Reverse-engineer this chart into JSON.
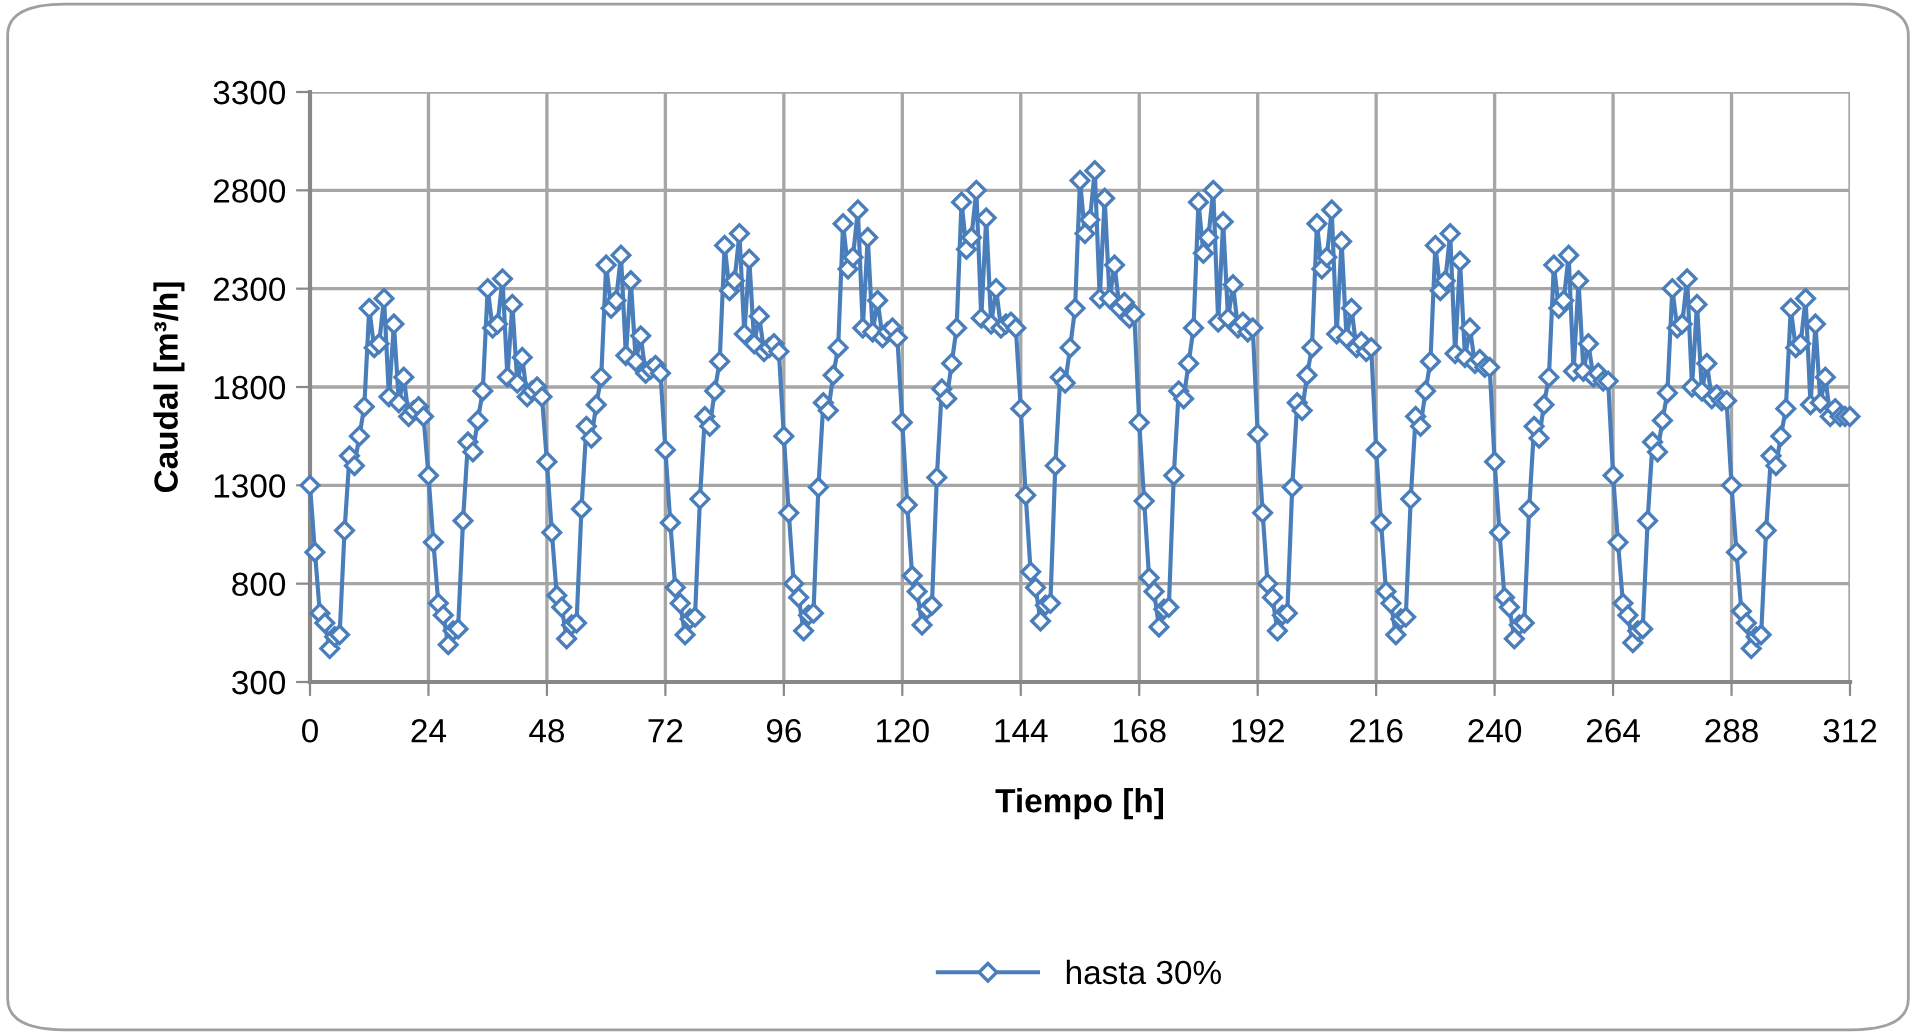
{
  "chart_data": {
    "type": "line",
    "xlabel": "Tiempo [h]",
    "ylabel": "Caudal [m³/h]",
    "xlim": [
      0,
      312
    ],
    "xticks": [
      0,
      24,
      48,
      72,
      96,
      120,
      144,
      168,
      192,
      216,
      240,
      264,
      288,
      312
    ],
    "ylim": [
      300,
      3300
    ],
    "yticks": [
      300,
      800,
      1300,
      1800,
      2300,
      2800,
      3300
    ],
    "grid": true,
    "legend": "bottom",
    "marker": "diamond",
    "line_style": "solid",
    "x": [
      0,
      1,
      2,
      3,
      4,
      5,
      6,
      7,
      8,
      9,
      10,
      11,
      12,
      13,
      14,
      15,
      16,
      17,
      18,
      19,
      20,
      21,
      22,
      23,
      24,
      25,
      26,
      27,
      28,
      29,
      30,
      31,
      32,
      33,
      34,
      35,
      36,
      37,
      38,
      39,
      40,
      41,
      42,
      43,
      44,
      45,
      46,
      47,
      48,
      49,
      50,
      51,
      52,
      53,
      54,
      55,
      56,
      57,
      58,
      59,
      60,
      61,
      62,
      63,
      64,
      65,
      66,
      67,
      68,
      69,
      70,
      71,
      72,
      73,
      74,
      75,
      76,
      77,
      78,
      79,
      80,
      81,
      82,
      83,
      84,
      85,
      86,
      87,
      88,
      89,
      90,
      91,
      92,
      93,
      94,
      95,
      96,
      97,
      98,
      99,
      100,
      101,
      102,
      103,
      104,
      105,
      106,
      107,
      108,
      109,
      110,
      111,
      112,
      113,
      114,
      115,
      116,
      117,
      118,
      119,
      120,
      121,
      122,
      123,
      124,
      125,
      126,
      127,
      128,
      129,
      130,
      131,
      132,
      133,
      134,
      135,
      136,
      137,
      138,
      139,
      140,
      141,
      142,
      143,
      144,
      145,
      146,
      147,
      148,
      149,
      150,
      151,
      152,
      153,
      154,
      155,
      156,
      157,
      158,
      159,
      160,
      161,
      162,
      163,
      164,
      165,
      166,
      167,
      168,
      169,
      170,
      171,
      172,
      173,
      174,
      175,
      176,
      177,
      178,
      179,
      180,
      181,
      182,
      183,
      184,
      185,
      186,
      187,
      188,
      189,
      190,
      191,
      192,
      193,
      194,
      195,
      196,
      197,
      198,
      199,
      200,
      201,
      202,
      203,
      204,
      205,
      206,
      207,
      208,
      209,
      210,
      211,
      212,
      213,
      214,
      215,
      216,
      217,
      218,
      219,
      220,
      221,
      222,
      223,
      224,
      225,
      226,
      227,
      228,
      229,
      230,
      231,
      232,
      233,
      234,
      235,
      236,
      237,
      238,
      239,
      240,
      241,
      242,
      243,
      244,
      245,
      246,
      247,
      248,
      249,
      250,
      251,
      252,
      253,
      254,
      255,
      256,
      257,
      258,
      259,
      260,
      261,
      262,
      263,
      264,
      265,
      266,
      267,
      268,
      269,
      270,
      271,
      272,
      273,
      274,
      275,
      276,
      277,
      278,
      279,
      280,
      281,
      282,
      283,
      284,
      285,
      286,
      287,
      288,
      289,
      290,
      291,
      292,
      293,
      294,
      295,
      296,
      297,
      298,
      299,
      300,
      301,
      302,
      303,
      304,
      305,
      306,
      307,
      308,
      309,
      310,
      311,
      312
    ],
    "series": [
      {
        "name": "hasta 30%",
        "color": "#4a7ebb",
        "values": [
          1300,
          960,
          650,
          600,
          470,
          530,
          540,
          1070,
          1450,
          1400,
          1550,
          1700,
          2200,
          2000,
          2020,
          2250,
          1750,
          2120,
          1720,
          1850,
          1650,
          1680,
          1700,
          1650,
          1350,
          1010,
          700,
          640,
          490,
          560,
          570,
          1120,
          1520,
          1470,
          1630,
          1780,
          2300,
          2100,
          2120,
          2350,
          1850,
          2220,
          1820,
          1950,
          1750,
          1780,
          1800,
          1750,
          1420,
          1060,
          740,
          680,
          520,
          590,
          600,
          1180,
          1600,
          1540,
          1710,
          1850,
          2420,
          2200,
          2240,
          2470,
          1960,
          2340,
          1930,
          2060,
          1870,
          1890,
          1910,
          1870,
          1480,
          1110,
          780,
          700,
          540,
          620,
          630,
          1230,
          1650,
          1600,
          1780,
          1930,
          2520,
          2290,
          2340,
          2580,
          2070,
          2450,
          2020,
          2160,
          1980,
          2000,
          2020,
          1980,
          1550,
          1160,
          800,
          730,
          560,
          640,
          650,
          1290,
          1720,
          1680,
          1860,
          2000,
          2630,
          2400,
          2460,
          2700,
          2100,
          2560,
          2080,
          2240,
          2050,
          2080,
          2100,
          2050,
          1620,
          1200,
          840,
          760,
          590,
          670,
          690,
          1340,
          1790,
          1740,
          1920,
          2100,
          2740,
          2500,
          2560,
          2800,
          2150,
          2660,
          2120,
          2300,
          2100,
          2120,
          2130,
          2100,
          1690,
          1250,
          860,
          780,
          610,
          690,
          700,
          1400,
          1850,
          1820,
          2000,
          2200,
          2850,
          2580,
          2650,
          2900,
          2250,
          2760,
          2250,
          2420,
          2200,
          2230,
          2150,
          2170,
          1620,
          1220,
          830,
          760,
          580,
          670,
          680,
          1350,
          1780,
          1740,
          1920,
          2100,
          2740,
          2480,
          2560,
          2800,
          2130,
          2640,
          2150,
          2320,
          2100,
          2130,
          2080,
          2100,
          1560,
          1160,
          800,
          730,
          560,
          640,
          650,
          1290,
          1720,
          1680,
          1860,
          2000,
          2630,
          2400,
          2460,
          2700,
          2070,
          2540,
          2050,
          2200,
          2000,
          2030,
          1980,
          2000,
          1480,
          1110,
          760,
          700,
          540,
          620,
          630,
          1230,
          1650,
          1600,
          1780,
          1930,
          2520,
          2290,
          2340,
          2580,
          1970,
          2440,
          1950,
          2100,
          1920,
          1940,
          1900,
          1900,
          1420,
          1060,
          730,
          680,
          520,
          590,
          600,
          1180,
          1600,
          1540,
          1710,
          1850,
          2420,
          2200,
          2240,
          2470,
          1880,
          2340,
          1880,
          2020,
          1850,
          1870,
          1830,
          1830,
          1350,
          1010,
          700,
          640,
          500,
          560,
          570,
          1120,
          1520,
          1470,
          1630,
          1770,
          2300,
          2100,
          2120,
          2350,
          1800,
          2220,
          1780,
          1920,
          1740,
          1760,
          1730,
          1730,
          1300,
          960,
          660,
          600,
          470,
          530,
          540,
          1070,
          1450,
          1400,
          1550,
          1690,
          2200,
          2000,
          2020,
          2250,
          1710,
          2120,
          1720,
          1850,
          1650,
          1690,
          1650,
          1650,
          1650
        ]
      }
    ]
  }
}
